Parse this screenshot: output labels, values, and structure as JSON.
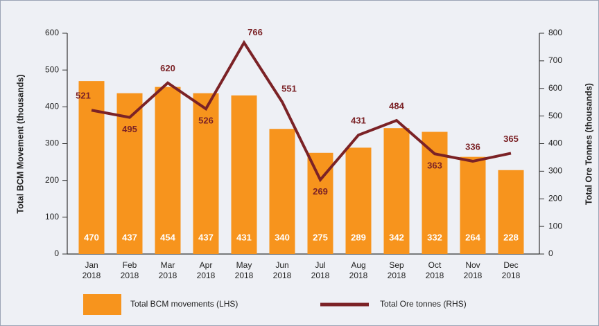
{
  "chart_data": {
    "type": "bar_line",
    "categories": [
      "Jan 2018",
      "Feb 2018",
      "Mar 2018",
      "Apr 2018",
      "May 2018",
      "Jun 2018",
      "Jul 2018",
      "Aug 2018",
      "Sep 2018",
      "Oct 2018",
      "Nov 2018",
      "Dec 2018"
    ],
    "series": [
      {
        "name": "Total BCM movements (LHS)",
        "color": "#f7941d",
        "type": "bar",
        "values": [
          470,
          437,
          454,
          437,
          431,
          340,
          275,
          289,
          342,
          332,
          264,
          228
        ]
      },
      {
        "name": "Total Ore tonnes (RHS)",
        "color": "#7b2226",
        "type": "line",
        "axis": "y2",
        "values": [
          521,
          495,
          620,
          526,
          766,
          551,
          269,
          431,
          484,
          363,
          336,
          365
        ]
      }
    ],
    "ylabel": "Total BCM Movement (thousands)",
    "y2label": "Total Ore Tonnes (thousands)",
    "ylim": [
      0,
      600
    ],
    "yticks": [
      0,
      100,
      200,
      300,
      400,
      500,
      600
    ],
    "y2lim": [
      0,
      800
    ],
    "y2ticks": [
      0,
      100,
      200,
      300,
      400,
      500,
      600,
      700,
      800
    ],
    "grid": false,
    "legend": "bottom"
  }
}
